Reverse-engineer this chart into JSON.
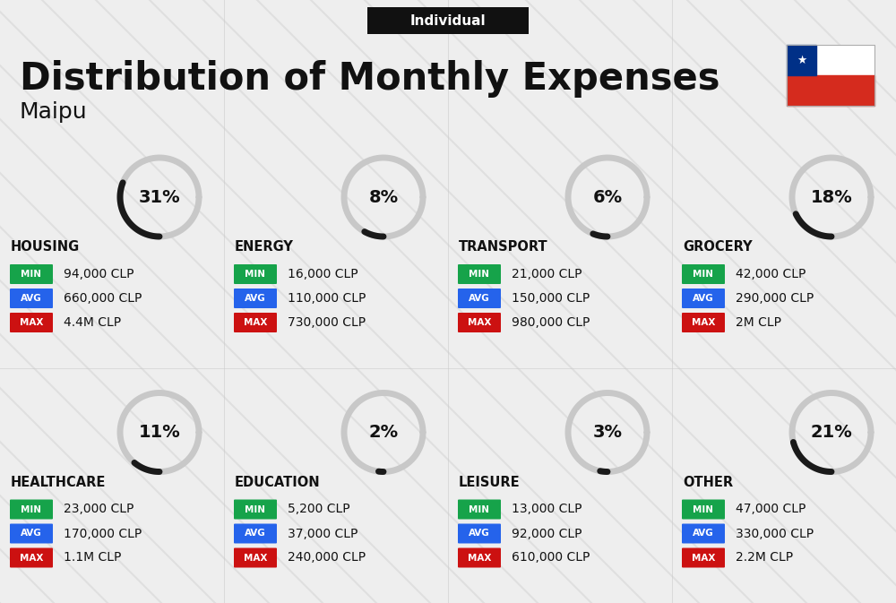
{
  "title": "Distribution of Monthly Expenses",
  "subtitle": "Maipu",
  "tag": "Individual",
  "bg_color": "#eeeeee",
  "categories": [
    {
      "name": "HOUSING",
      "pct": 31,
      "min": "94,000 CLP",
      "avg": "660,000 CLP",
      "max": "4.4M CLP"
    },
    {
      "name": "ENERGY",
      "pct": 8,
      "min": "16,000 CLP",
      "avg": "110,000 CLP",
      "max": "730,000 CLP"
    },
    {
      "name": "TRANSPORT",
      "pct": 6,
      "min": "21,000 CLP",
      "avg": "150,000 CLP",
      "max": "980,000 CLP"
    },
    {
      "name": "GROCERY",
      "pct": 18,
      "min": "42,000 CLP",
      "avg": "290,000 CLP",
      "max": "2M CLP"
    },
    {
      "name": "HEALTHCARE",
      "pct": 11,
      "min": "23,000 CLP",
      "avg": "170,000 CLP",
      "max": "1.1M CLP"
    },
    {
      "name": "EDUCATION",
      "pct": 2,
      "min": "5,200 CLP",
      "avg": "37,000 CLP",
      "max": "240,000 CLP"
    },
    {
      "name": "LEISURE",
      "pct": 3,
      "min": "13,000 CLP",
      "avg": "92,000 CLP",
      "max": "610,000 CLP"
    },
    {
      "name": "OTHER",
      "pct": 21,
      "min": "47,000 CLP",
      "avg": "330,000 CLP",
      "max": "2.2M CLP"
    }
  ],
  "min_color": "#16a34a",
  "avg_color": "#2563eb",
  "max_color": "#cc1111",
  "arc_fg": "#1a1a1a",
  "arc_bg": "#c8c8c8",
  "text_color": "#111111",
  "tag_bg": "#111111",
  "tag_fg": "#ffffff",
  "diag_color": "#d4d4d4",
  "cell_bg": "#eeeeee"
}
